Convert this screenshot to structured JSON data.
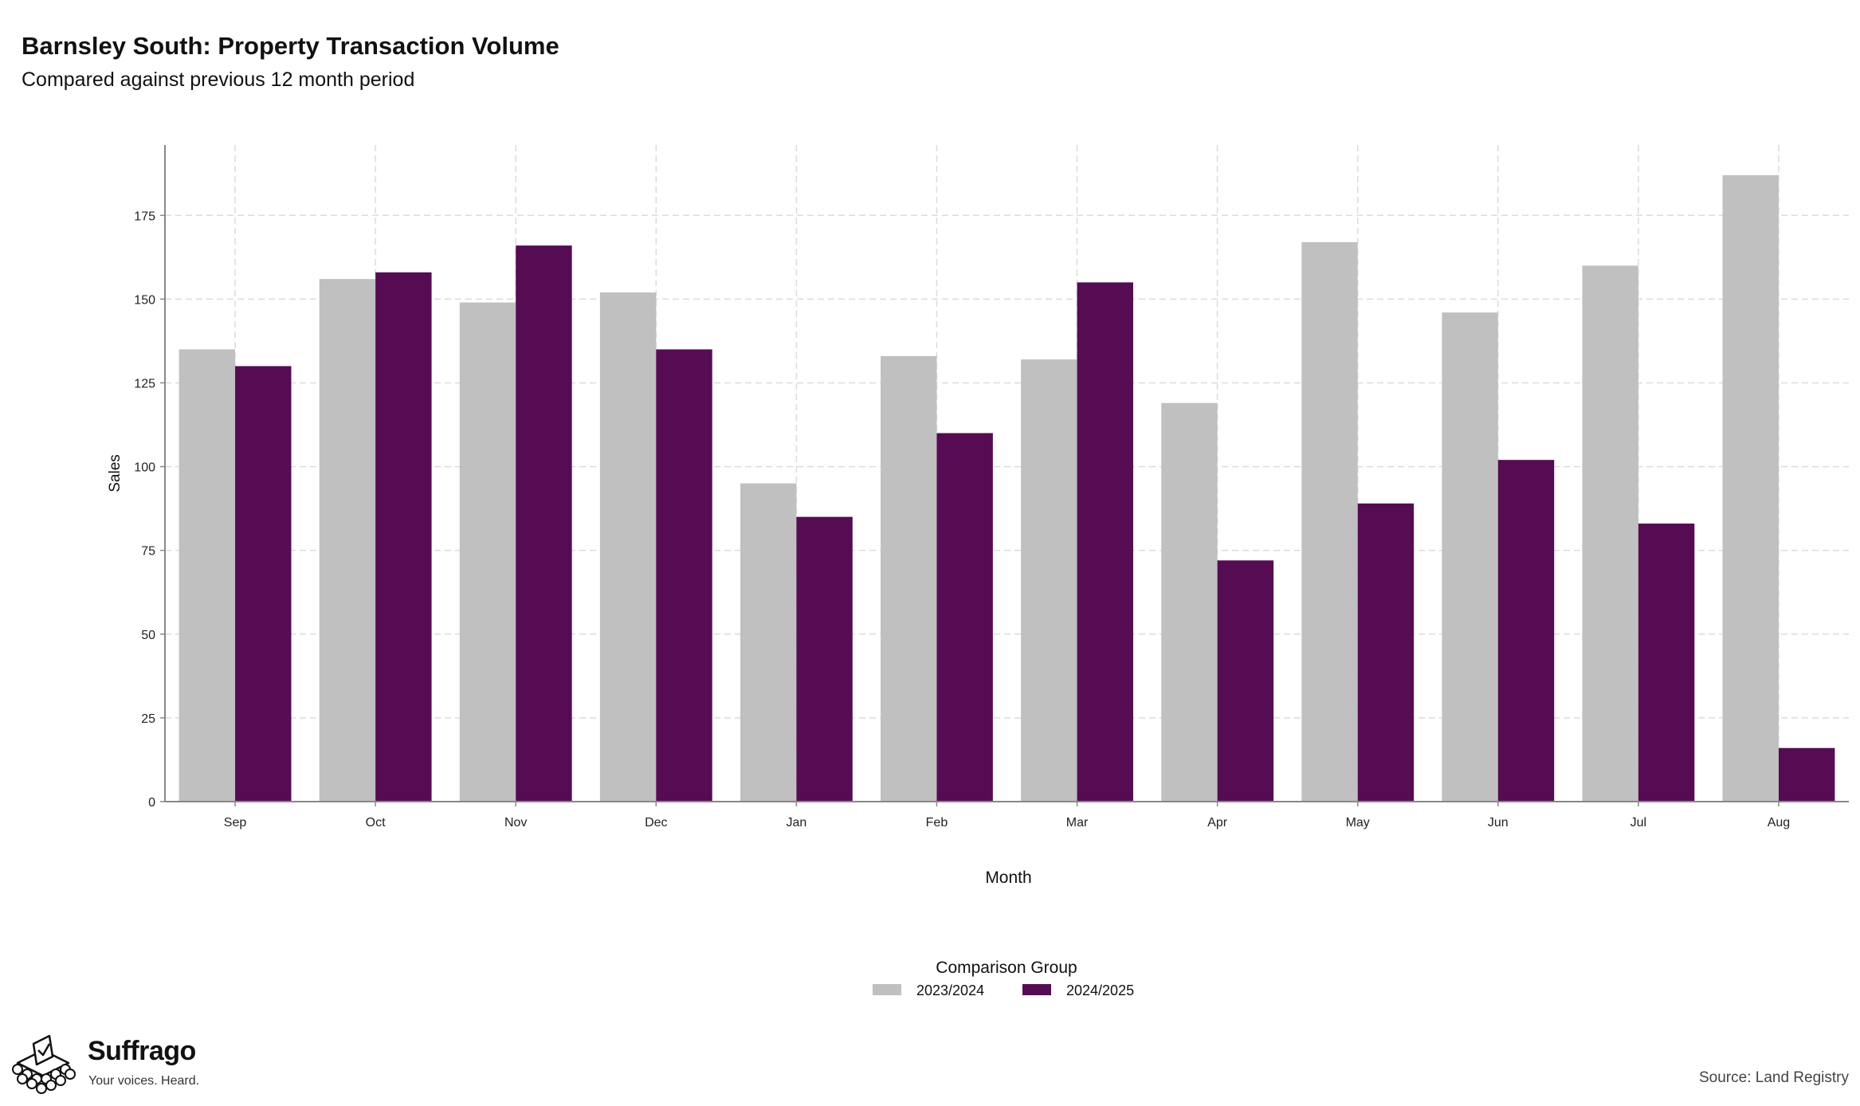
{
  "header": {
    "title": "Barnsley South: Property Transaction Volume",
    "subtitle": "Compared against previous 12 month period"
  },
  "brand": {
    "name": "Suffrago",
    "tagline": "Your voices. Heard."
  },
  "source": "Source: Land Registry",
  "legend": {
    "title": "Comparison Group"
  },
  "chart_data": {
    "type": "bar",
    "title": "Barnsley South: Property Transaction Volume",
    "subtitle": "Compared against previous 12 month period",
    "xlabel": "Month",
    "ylabel": "Sales",
    "categories": [
      "Sep",
      "Oct",
      "Nov",
      "Dec",
      "Jan",
      "Feb",
      "Mar",
      "Apr",
      "May",
      "Jun",
      "Jul",
      "Aug"
    ],
    "series": [
      {
        "name": "2023/2024",
        "color": "#c0c0c0",
        "values": [
          135,
          156,
          149,
          152,
          95,
          133,
          132,
          119,
          167,
          146,
          160,
          187
        ]
      },
      {
        "name": "2024/2025",
        "color": "#560c53",
        "values": [
          130,
          158,
          166,
          135,
          85,
          110,
          155,
          72,
          89,
          102,
          83,
          16
        ]
      }
    ],
    "yticks": [
      0,
      25,
      50,
      75,
      100,
      125,
      150,
      175
    ],
    "ylim": [
      0,
      196
    ],
    "grid": true,
    "legend_position": "bottom-center"
  }
}
